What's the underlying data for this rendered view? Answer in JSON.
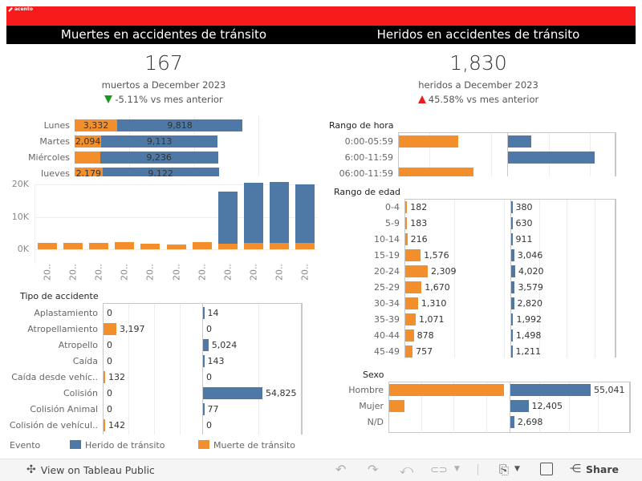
{
  "brand": {
    "logo_text": "acento",
    "red": "#f81b1b",
    "orange": "#f28e2b",
    "blue": "#4e79a7"
  },
  "left": {
    "title": "Muertes en accidentes de tránsito",
    "kpi_value": "167",
    "kpi_subtitle": "muertos a December 2023",
    "kpi_change": "-5.11% vs mes anterior",
    "kpi_direction": "down"
  },
  "right": {
    "title": "Heridos en accidentes de tránsito",
    "kpi_value": "1,830",
    "kpi_subtitle": "heridos a  December 2023",
    "kpi_change": "45.58% vs mes anterior",
    "kpi_direction": "up"
  },
  "chart_data": [
    {
      "id": "dias",
      "type": "bar",
      "orientation": "horizontal-stacked",
      "title": "",
      "categories": [
        "Lunes",
        "Martes",
        "Miércoles",
        "Jueves"
      ],
      "series": [
        {
          "name": "Muerte de tránsito",
          "values": [
            3332,
            2094,
            2000,
            2179
          ],
          "labels": [
            "3,332",
            "2,094",
            "",
            "2,179"
          ]
        },
        {
          "name": "Herido de tránsito",
          "values": [
            9818,
            9113,
            9236,
            9122
          ],
          "labels": [
            "9,818",
            "9,113",
            "9,236",
            "9,122"
          ]
        }
      ]
    },
    {
      "id": "anual",
      "type": "bar",
      "orientation": "vertical-stacked",
      "title": "",
      "categories": [
        "20..",
        "20..",
        "20..",
        "20..",
        "20..",
        "20..",
        "20..",
        "20..",
        "20..",
        "20..",
        "20.."
      ],
      "series": [
        {
          "name": "Muerte de tránsito",
          "values": [
            1900,
            1900,
            1900,
            2200,
            1700,
            1400,
            2200,
            1700,
            1900,
            1900,
            1900
          ]
        },
        {
          "name": "Herido de tránsito",
          "values": [
            0,
            0,
            0,
            0,
            0,
            0,
            0,
            16000,
            18600,
            18900,
            18200
          ]
        }
      ],
      "yticks": [
        "0K",
        "10K",
        "20K"
      ],
      "ylim": [
        0,
        21000
      ],
      "grid": true
    },
    {
      "id": "tipo",
      "type": "bar",
      "orientation": "horizontal-paired",
      "title": "Tipo de accidente",
      "categories": [
        "Aplastamiento",
        "Atropellamiento",
        "Atropello",
        "Caída",
        "Caída desde vehíc..",
        "Colisión",
        "Colisión Animal",
        "Colisión de vehícul.."
      ],
      "series": [
        {
          "name": "Muerte de tránsito",
          "values": [
            0,
            3197,
            0,
            0,
            132,
            0,
            0,
            142
          ],
          "labels": [
            "0",
            "3,197",
            "0",
            "0",
            "132",
            "0",
            "0",
            "142"
          ]
        },
        {
          "name": "Herido de tránsito",
          "values": [
            14,
            0,
            5024,
            143,
            0,
            54825,
            77,
            0
          ],
          "labels": [
            "14",
            "0",
            "5,024",
            "143",
            "0",
            "54,825",
            "77",
            "0"
          ]
        }
      ]
    },
    {
      "id": "hora",
      "type": "bar",
      "orientation": "horizontal-paired",
      "title": "Rango de hora",
      "categories": [
        "0:00-05:59",
        "6:00-11:59",
        "06:00-11:59"
      ],
      "series": [
        {
          "name": "Muerte de tránsito",
          "values": [
            2400,
            0,
            3000
          ]
        },
        {
          "name": "Herido de tránsito",
          "values": [
            8500,
            32000,
            0
          ]
        }
      ]
    },
    {
      "id": "edad",
      "type": "bar",
      "orientation": "horizontal-paired",
      "title": "Rango de edad",
      "categories": [
        "0-4",
        "5-9",
        "10-14",
        "15-19",
        "20-24",
        "25-29",
        "30-34",
        "35-39",
        "40-44",
        "45-49"
      ],
      "series": [
        {
          "name": "Muerte de tránsito",
          "values": [
            182,
            183,
            216,
            1576,
            2309,
            1670,
            1310,
            1071,
            878,
            757
          ],
          "labels": [
            "182",
            "183",
            "216",
            "1,576",
            "2,309",
            "1,670",
            "1,310",
            "1,071",
            "878",
            "757"
          ]
        },
        {
          "name": "Herido de tránsito",
          "values": [
            380,
            630,
            911,
            3046,
            4020,
            3579,
            2820,
            1992,
            1498,
            1211
          ],
          "labels": [
            "380",
            "630",
            "911",
            "3,046",
            "4,020",
            "3,579",
            "2,820",
            "1,992",
            "1,498",
            "1,211"
          ]
        }
      ]
    },
    {
      "id": "sexo",
      "type": "bar",
      "orientation": "horizontal-paired",
      "title": "Sexo",
      "categories": [
        "Hombre",
        "Mujer",
        "N/D"
      ],
      "series": [
        {
          "name": "Muerte de tránsito",
          "values": [
            12000,
            1600,
            0
          ],
          "labels": [
            "",
            "",
            ""
          ]
        },
        {
          "name": "Herido de tránsito",
          "values": [
            55041,
            12405,
            2698
          ],
          "labels": [
            "55,041",
            "12,405",
            "2,698"
          ]
        }
      ]
    }
  ],
  "legend": {
    "title": "Evento",
    "items": [
      {
        "label": "Herido de tránsito",
        "color": "#4e79a7"
      },
      {
        "label": "Muerte de tránsito",
        "color": "#f28e2b"
      }
    ]
  },
  "footer": {
    "view_label": "View on Tableau Public",
    "share_label": "Share",
    "icons": [
      "undo-icon",
      "redo-icon",
      "revert-icon",
      "refresh-icon",
      "download-icon",
      "fullscreen-icon",
      "share-icon"
    ]
  }
}
